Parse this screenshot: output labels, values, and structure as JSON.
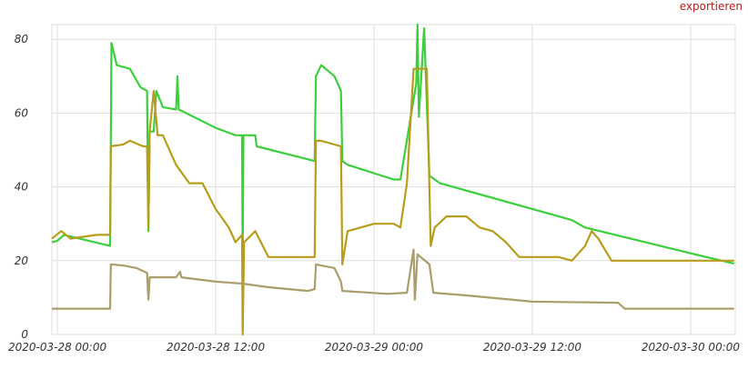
{
  "export_label": "exportieren",
  "chart_data": {
    "type": "line",
    "xlim": [
      "2020-03-27 23:35",
      "2020-03-30 03:23"
    ],
    "xticks": [
      "2020-03-28 00:00",
      "2020-03-28 12:00",
      "2020-03-29 00:00",
      "2020-03-29 12:00",
      "2020-03-30 00:00"
    ],
    "ylim": [
      0,
      84
    ],
    "yticks": [
      0,
      20,
      40,
      60,
      80
    ],
    "grid": true,
    "series": [
      {
        "color": "#3ccf3c",
        "x": [
          "2020-03-27 23:35",
          "2020-03-28 00:00",
          "2020-03-28 00:30",
          "2020-03-28 04:00",
          "2020-03-28 04:06",
          "2020-03-28 04:30",
          "2020-03-28 05:30",
          "2020-03-28 06:18",
          "2020-03-28 06:48",
          "2020-03-28 06:54",
          "2020-03-28 07:00",
          "2020-03-28 07:18",
          "2020-03-28 07:30",
          "2020-03-28 08:00",
          "2020-03-28 09:00",
          "2020-03-28 09:06",
          "2020-03-28 09:12",
          "2020-03-28 12:00",
          "2020-03-28 13:30",
          "2020-03-28 14:00",
          "2020-03-28 14:03",
          "2020-03-28 14:06",
          "2020-03-28 15:00",
          "2020-03-28 15:06",
          "2020-03-28 19:30",
          "2020-03-28 19:36",
          "2020-03-28 20:00",
          "2020-03-28 21:00",
          "2020-03-28 21:30",
          "2020-03-28 21:36",
          "2020-03-28 22:00",
          "2020-03-29 01:30",
          "2020-03-29 02:00",
          "2020-03-29 03:12",
          "2020-03-29 03:18",
          "2020-03-29 03:24",
          "2020-03-29 03:48",
          "2020-03-29 04:12",
          "2020-03-29 05:00",
          "2020-03-29 14:00",
          "2020-03-29 15:00",
          "2020-03-29 16:00",
          "2020-03-30 00:00",
          "2020-03-30 03:18"
        ],
        "values": [
          25,
          25.4,
          27,
          24,
          79,
          73,
          72,
          67,
          66,
          28,
          55,
          55,
          66,
          61.6,
          61,
          70,
          61,
          56,
          54,
          54,
          20,
          54,
          54,
          51,
          47,
          70,
          73,
          70,
          66,
          47,
          46,
          42,
          42,
          68,
          84,
          59,
          83,
          43,
          41,
          32,
          31,
          29,
          22,
          19.2
        ]
      },
      {
        "color": "#b89d1c",
        "x": [
          "2020-03-27 23:35",
          "2020-03-28 00:18",
          "2020-03-28 01:00",
          "2020-03-28 03:00",
          "2020-03-28 04:00",
          "2020-03-28 04:03",
          "2020-03-28 05:00",
          "2020-03-28 05:30",
          "2020-03-28 06:30",
          "2020-03-28 06:48",
          "2020-03-28 06:54",
          "2020-03-28 07:00",
          "2020-03-28 07:18",
          "2020-03-28 07:36",
          "2020-03-28 08:00",
          "2020-03-28 09:00",
          "2020-03-28 10:00",
          "2020-03-28 11:00",
          "2020-03-28 12:00",
          "2020-03-28 13:00",
          "2020-03-28 13:30",
          "2020-03-28 14:00",
          "2020-03-28 14:03",
          "2020-03-28 14:09",
          "2020-03-28 15:00",
          "2020-03-28 16:00",
          "2020-03-28 19:30",
          "2020-03-28 19:36",
          "2020-03-28 20:00",
          "2020-03-28 21:30",
          "2020-03-28 21:36",
          "2020-03-28 22:00",
          "2020-03-29 00:00",
          "2020-03-29 01:30",
          "2020-03-29 02:00",
          "2020-03-29 02:30",
          "2020-03-29 03:00",
          "2020-03-29 04:00",
          "2020-03-29 04:18",
          "2020-03-29 04:36",
          "2020-03-29 05:30",
          "2020-03-29 07:00",
          "2020-03-29 08:00",
          "2020-03-29 09:00",
          "2020-03-29 10:00",
          "2020-03-29 11:00",
          "2020-03-29 14:00",
          "2020-03-29 15:00",
          "2020-03-29 16:00",
          "2020-03-29 16:30",
          "2020-03-29 17:00",
          "2020-03-29 18:00",
          "2020-03-30 03:18"
        ],
        "values": [
          26,
          28,
          26,
          27,
          27,
          51,
          51.5,
          52.5,
          51,
          51,
          29,
          55,
          66,
          54,
          54,
          46,
          41,
          41,
          34,
          29,
          25,
          27,
          0,
          25,
          28,
          21,
          21,
          52.5,
          52.5,
          51,
          19,
          28,
          30,
          30,
          29,
          41,
          72,
          72,
          24,
          29,
          32,
          32,
          29,
          28,
          25,
          21,
          21,
          20,
          24,
          28,
          26,
          20,
          20
        ]
      },
      {
        "color": "#ab9d6c",
        "x": [
          "2020-03-27 23:35",
          "2020-03-28 04:00",
          "2020-03-28 04:03",
          "2020-03-28 05:00",
          "2020-03-28 06:00",
          "2020-03-28 06:48",
          "2020-03-28 06:54",
          "2020-03-28 07:00",
          "2020-03-28 09:00",
          "2020-03-28 09:18",
          "2020-03-28 09:24",
          "2020-03-28 12:00",
          "2020-03-28 14:00",
          "2020-03-28 16:00",
          "2020-03-28 19:00",
          "2020-03-28 19:30",
          "2020-03-28 19:36",
          "2020-03-28 21:00",
          "2020-03-28 21:30",
          "2020-03-28 21:36",
          "2020-03-29 01:00",
          "2020-03-29 02:30",
          "2020-03-29 03:00",
          "2020-03-29 03:06",
          "2020-03-29 03:18",
          "2020-03-29 04:12",
          "2020-03-29 04:30",
          "2020-03-29 07:00",
          "2020-03-29 12:00",
          "2020-03-29 18:30",
          "2020-03-29 19:00",
          "2020-03-30 03:18"
        ],
        "values": [
          7,
          7,
          19,
          18.7,
          18,
          16.7,
          9.4,
          15.5,
          15.5,
          17,
          15.5,
          14.3,
          13.8,
          12.8,
          11.8,
          12.3,
          19,
          18,
          14.3,
          11.8,
          11,
          11.3,
          23,
          9.4,
          21.7,
          19,
          11.3,
          10.6,
          8.9,
          8.6,
          7,
          7
        ]
      }
    ]
  }
}
